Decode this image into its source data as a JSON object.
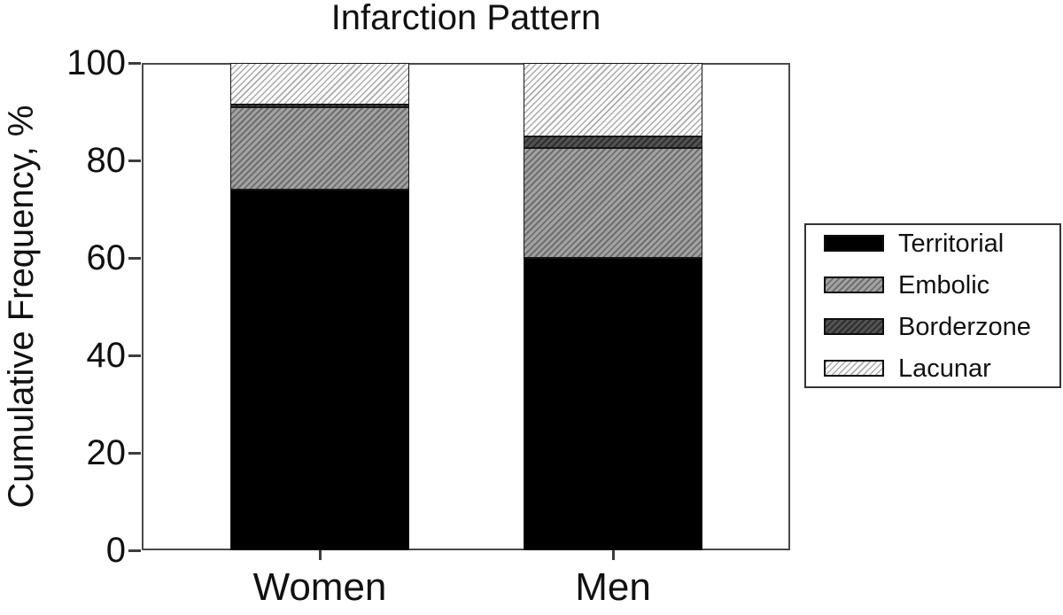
{
  "chart_data": {
    "type": "bar",
    "stacked": true,
    "title": "Infarction Pattern",
    "xlabel": "",
    "ylabel": "Cumulative Frequency, %",
    "ylim": [
      0,
      100
    ],
    "yticks": [
      0,
      20,
      40,
      60,
      80,
      100
    ],
    "categories": [
      "Women",
      "Men"
    ],
    "series": [
      {
        "name": "Territorial",
        "values": [
          74,
          60
        ]
      },
      {
        "name": "Embolic",
        "values": [
          17,
          22.5
        ]
      },
      {
        "name": "Borderzone",
        "values": [
          0.5,
          2.5
        ]
      },
      {
        "name": "Lacunar",
        "values": [
          8.5,
          15
        ]
      }
    ],
    "legend": {
      "position": "right",
      "entries": [
        "Territorial",
        "Embolic",
        "Borderzone",
        "Lacunar"
      ]
    },
    "grid": false
  },
  "colors": {
    "territorial": "#000000",
    "embolic_bg": "#a2a2a2",
    "embolic_hatch": "#6e6e6e",
    "borderzone_bg": "#525252",
    "borderzone_hatch": "#2e2e2e",
    "lacunar_bg": "#fbfbfb",
    "lacunar_hatch": "#ababab",
    "frame": "#4a4a4a"
  }
}
